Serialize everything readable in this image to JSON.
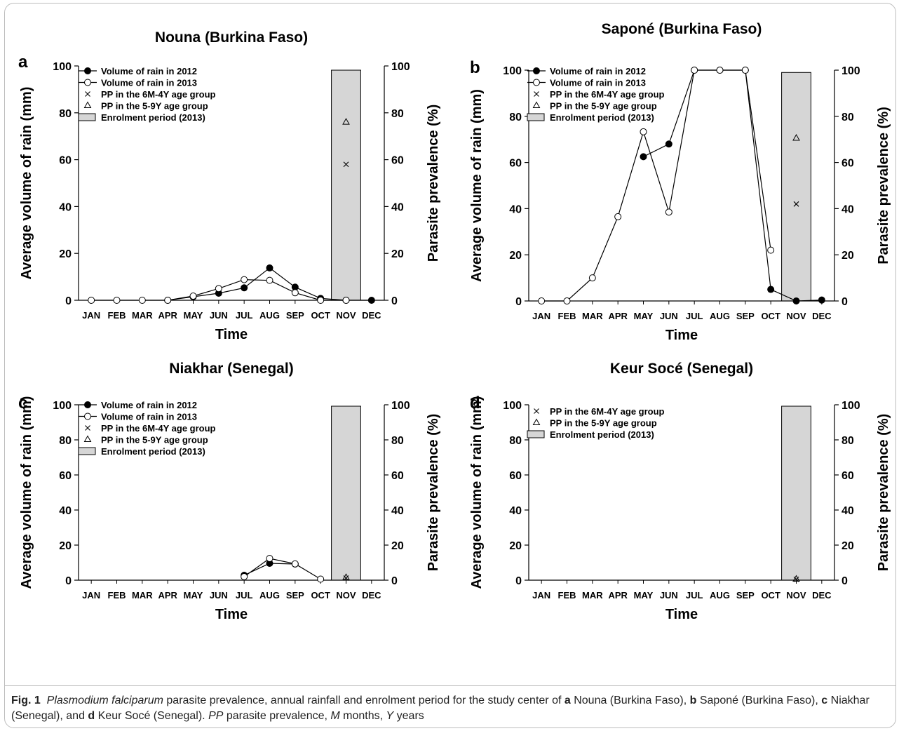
{
  "colors": {
    "bar_fill": "#d6d6d6",
    "line": "#000000",
    "frame": "#bdbdbd"
  },
  "figure": {
    "caption_lead": "Fig. 1",
    "caption_species": "Plasmodium falciparum",
    "caption_text": " parasite prevalence, annual rainfall and enrolment period for the study center of ",
    "caption_a": "a",
    "caption_a_text": " Nouna (Burkina Faso), ",
    "caption_b": "b",
    "caption_b_text": " Saponé (Burkina Faso), ",
    "caption_c": "c",
    "caption_c_text": " Niakhar (Senegal), and ",
    "caption_d": "d",
    "caption_d_text": " Keur Socé (Senegal). ",
    "caption_pp": "PP",
    "caption_pp_text": " parasite prevalence, ",
    "caption_m": "M",
    "caption_m_text": " months, ",
    "caption_y": "Y",
    "caption_y_text": " years"
  },
  "chart_data": [
    {
      "type": "line",
      "panel_letter": "a",
      "title": "Nouna (Burkina Faso)",
      "xlabel": "Time",
      "ylabel": "Average volume of rain (mm)",
      "y2label": "Parasite prevalence (%)",
      "categories": [
        "JAN",
        "FEB",
        "MAR",
        "APR",
        "MAY",
        "JUN",
        "JUL",
        "AUG",
        "SEP",
        "OCT",
        "NOV",
        "DEC"
      ],
      "ylim": [
        0,
        100
      ],
      "y2lim": [
        0,
        100
      ],
      "yticks": [
        0,
        20,
        40,
        60,
        80,
        100
      ],
      "legend_position": "top-left",
      "legend": [
        "Volume of rain in 2012",
        "Volume of rain in 2013",
        "PP in the 6M-4Y age group",
        "PP in the 5-9Y age group",
        "Enrolment period (2013)"
      ],
      "series": [
        {
          "name": "Volume of rain in 2012",
          "marker": "filled-circle",
          "values": [
            null,
            null,
            null,
            0,
            1.5,
            3,
            5.3,
            13.8,
            5.6,
            0.8,
            0,
            0
          ]
        },
        {
          "name": "Volume of rain in 2013",
          "marker": "open-circle",
          "values": [
            0,
            0,
            0,
            0,
            1.8,
            5,
            8.8,
            8.5,
            3.2,
            0,
            0,
            null
          ]
        }
      ],
      "enrolment_bar": {
        "month": "NOV",
        "value": 98.2
      },
      "pp": [
        {
          "name": "PP in the 6M-4Y age group",
          "marker": "x",
          "month": "NOV",
          "value": 58
        },
        {
          "name": "PP in the 5-9Y age group",
          "marker": "triangle",
          "month": "NOV",
          "value": 76
        }
      ]
    },
    {
      "type": "line",
      "panel_letter": "b",
      "title": "Saponé (Burkina Faso)",
      "xlabel": "Time",
      "ylabel": "Average volume of rain (mm)",
      "y2label": "Parasite prevalence (%)",
      "categories": [
        "JAN",
        "FEB",
        "MAR",
        "APR",
        "MAY",
        "JUN",
        "JUL",
        "AUG",
        "SEP",
        "OCT",
        "NOV",
        "DEC"
      ],
      "ylim": [
        0,
        100
      ],
      "y2lim": [
        0,
        100
      ],
      "yticks": [
        0,
        20,
        40,
        60,
        80,
        100
      ],
      "legend_position": "top-left",
      "legend": [
        "Volume of rain in 2012",
        "Volume of rain in 2013",
        "PP in the 6M-4Y age group",
        "PP in the 5-9Y age group",
        "Enrolment period (2013)"
      ],
      "series": [
        {
          "name": "Volume of rain in 2012",
          "marker": "filled-circle",
          "values": [
            null,
            null,
            null,
            null,
            62.5,
            68,
            100,
            100,
            100,
            5,
            0,
            0.4
          ]
        },
        {
          "name": "Volume of rain in 2013",
          "marker": "open-circle",
          "values": [
            0,
            0,
            10,
            36.5,
            73.3,
            38.5,
            100,
            100,
            100,
            22,
            null,
            null
          ]
        }
      ],
      "enrolment_bar": {
        "month": "NOV",
        "value": 99
      },
      "pp": [
        {
          "name": "PP in the 6M-4Y age group",
          "marker": "x",
          "month": "NOV",
          "value": 42
        },
        {
          "name": "PP in the 5-9Y age group",
          "marker": "triangle",
          "month": "NOV",
          "value": 70.5
        }
      ]
    },
    {
      "type": "line",
      "panel_letter": "c",
      "title": "Niakhar (Senegal)",
      "xlabel": "Time",
      "ylabel": "Average volume of rain (mm)",
      "y2label": "Parasite prevalence (%)",
      "categories": [
        "JAN",
        "FEB",
        "MAR",
        "APR",
        "MAY",
        "JUN",
        "JUL",
        "AUG",
        "SEP",
        "OCT",
        "NOV",
        "DEC"
      ],
      "ylim": [
        0,
        100
      ],
      "y2lim": [
        0,
        100
      ],
      "yticks": [
        0,
        20,
        40,
        60,
        80,
        100
      ],
      "legend_position": "top-left",
      "legend": [
        "Volume of rain in 2012",
        "Volume of rain in 2013",
        "PP in the 6M-4Y age group",
        "PP in the 5-9Y age group",
        "Enrolment period (2013)"
      ],
      "series": [
        {
          "name": "Volume of rain in 2012",
          "marker": "filled-circle",
          "values": [
            null,
            null,
            null,
            null,
            null,
            null,
            2.8,
            9.6,
            9.2,
            null,
            null,
            null
          ]
        },
        {
          "name": "Volume of rain in 2013",
          "marker": "open-circle",
          "values": [
            null,
            null,
            null,
            null,
            null,
            null,
            2,
            12.4,
            9.3,
            0.6,
            null,
            null
          ]
        }
      ],
      "enrolment_bar": {
        "month": "NOV",
        "value": 99.2
      },
      "pp": [
        {
          "name": "PP in the 6M-4Y age group",
          "marker": "x",
          "month": "NOV",
          "value": 1.2
        },
        {
          "name": "PP in the 5-9Y age group",
          "marker": "triangle",
          "month": "NOV",
          "value": 1.5
        }
      ]
    },
    {
      "type": "line",
      "panel_letter": "d",
      "title": "Keur Socé (Senegal)",
      "xlabel": "Time",
      "ylabel": "Average volume of rain (mm)",
      "y2label": "Parasite prevalence (%)",
      "categories": [
        "JAN",
        "FEB",
        "MAR",
        "APR",
        "MAY",
        "JUN",
        "JUL",
        "AUG",
        "SEP",
        "OCT",
        "NOV",
        "DEC"
      ],
      "ylim": [
        0,
        100
      ],
      "y2lim": [
        0,
        100
      ],
      "yticks": [
        0,
        20,
        40,
        60,
        80,
        100
      ],
      "legend_position": "top-left",
      "legend": [
        "PP in the 6M-4Y age group",
        "PP in the 5-9Y age group",
        "Enrolment period (2013)"
      ],
      "series": [],
      "enrolment_bar": {
        "month": "NOV",
        "value": 99.2
      },
      "pp": [
        {
          "name": "PP in the 6M-4Y age group",
          "marker": "x",
          "month": "NOV",
          "value": 0.5
        },
        {
          "name": "PP in the 5-9Y age group",
          "marker": "triangle",
          "month": "NOV",
          "value": 0.6
        }
      ]
    }
  ]
}
